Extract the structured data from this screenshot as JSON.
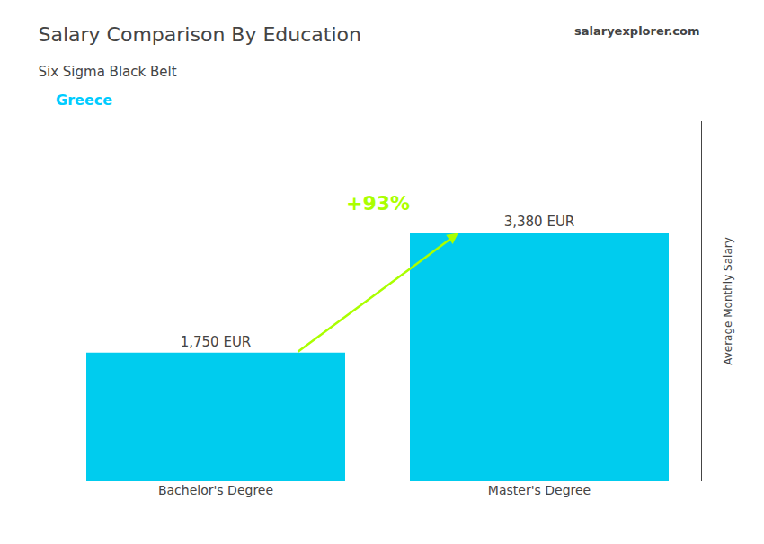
{
  "chart_data": {
    "type": "bar",
    "title": "Salary Comparison By Education",
    "subtitle": "Six Sigma Black Belt",
    "ylabel": "Average Monthly Salary",
    "categories": [
      "Bachelor's Degree",
      "Master's Degree"
    ],
    "values": [
      1750,
      3380
    ],
    "value_labels": [
      "1,750 EUR",
      "3,380 EUR"
    ],
    "data_labels": true,
    "color": "#00ccee",
    "ylim": [
      0,
      4901
    ],
    "tick_labels": "x",
    "grid": false,
    "annotations": [
      {
        "text": "+93%",
        "color": "#aaff00"
      },
      {
        "text": "Greece",
        "color": "#00ccff"
      },
      {
        "text": "salaryexplorer.com"
      }
    ]
  }
}
